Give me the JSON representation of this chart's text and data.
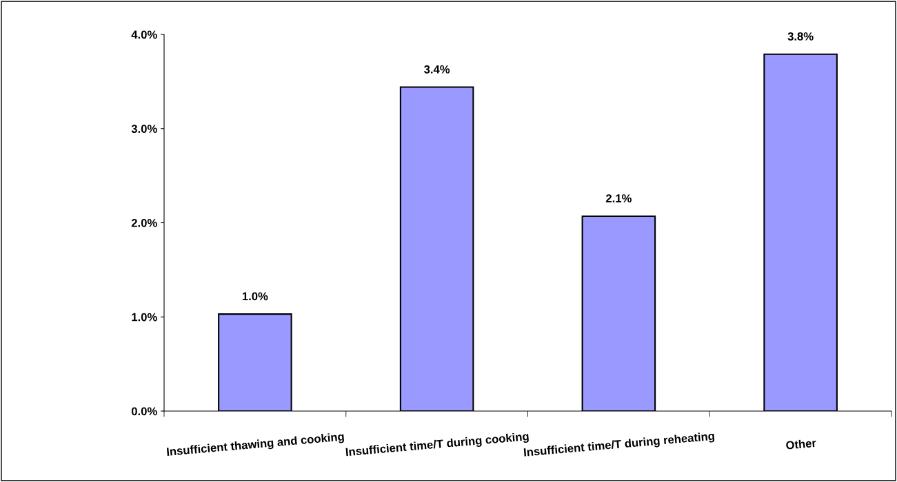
{
  "chart_data": {
    "type": "bar",
    "categories": [
      "Insufficient thawing and cooking",
      "Insufficient time/T during cooking",
      "Insufficient time/T during reheating",
      "Other"
    ],
    "values": [
      1.03,
      3.44,
      2.07,
      3.79
    ],
    "value_labels": [
      "1.0%",
      "3.4%",
      "2.1%",
      "3.8%"
    ],
    "color": "#9999ff",
    "ylim": [
      0,
      4
    ],
    "yticks": [
      {
        "value": 0,
        "label": "0.0%"
      },
      {
        "value": 1,
        "label": "1.0%"
      },
      {
        "value": 2,
        "label": "2.0%"
      },
      {
        "value": 3,
        "label": "3.0%"
      },
      {
        "value": 4,
        "label": "4.0%"
      }
    ],
    "grid": false,
    "legend": false
  }
}
